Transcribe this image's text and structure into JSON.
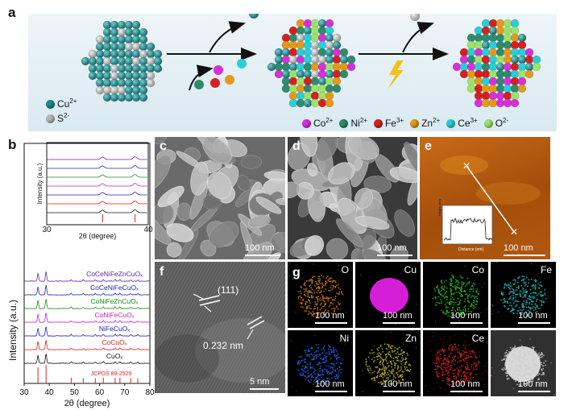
{
  "panel_labels": {
    "a": "a",
    "b": "b",
    "c": "c",
    "d": "d",
    "e": "e",
    "f": "f",
    "g": "g"
  },
  "panel_a": {
    "ions_left": [
      {
        "name": "Cu",
        "charge": "2+"
      },
      {
        "name": "S",
        "charge": "2-"
      }
    ],
    "ions_right": [
      {
        "name": "Co",
        "charge": "2+",
        "color": "#d82fd8"
      },
      {
        "name": "Ni",
        "charge": "2+",
        "color": "#2f8b6e"
      },
      {
        "name": "Fe",
        "charge": "3+",
        "color": "#d81f1f"
      },
      {
        "name": "Zn",
        "charge": "2+",
        "color": "#e39a1a"
      },
      {
        "name": "Ce",
        "charge": "3+",
        "color": "#28cfd8"
      },
      {
        "name": "O",
        "charge": "2-",
        "color": "#9be36a"
      }
    ],
    "colors": {
      "cu": "#1b8a8a",
      "s": "#b8b8b8",
      "lightning": "#f2c21a"
    }
  },
  "panel_b": {
    "xlabel": "2θ (degree)",
    "ylabel": "Intensity (a.u.)",
    "xticks": [
      "30",
      "40",
      "50",
      "60",
      "70",
      "80"
    ],
    "reference_label": "JCPDS 89-2529",
    "inset": {
      "xlabel": "2θ (degree)",
      "ylabel": "Intensity (a.u.)",
      "xticks": [
        "30",
        "40"
      ]
    },
    "samples": [
      {
        "name": "CoCeNiFeZnCuOₓ",
        "color": "#6a1fb8"
      },
      {
        "name": "CoCeNiFeCuOₓ",
        "color": "#1c2aa8"
      },
      {
        "name": "CoNiFeZnCuOₓ",
        "color": "#1f8a1f"
      },
      {
        "name": "CoNiFeCuOₓ",
        "color": "#d020c0"
      },
      {
        "name": "NiFeCuOₓ",
        "color": "#2020c8"
      },
      {
        "name": "CoCuOₓ",
        "color": "#e02020"
      },
      {
        "name": "CuOₓ",
        "color": "#111111"
      }
    ]
  },
  "chart_data": {
    "type": "line",
    "xlabel": "2θ (degree)",
    "ylabel": "Intensity (a.u.)",
    "xlim": [
      30,
      80
    ],
    "peaks_deg": [
      35.5,
      38.7,
      48.7,
      53.5,
      58.3,
      61.5,
      66.2,
      68.1,
      72.4,
      75.2
    ],
    "series": [
      {
        "name": "CoCeNiFeZnCuOₓ"
      },
      {
        "name": "CoCeNiFeCuOₓ"
      },
      {
        "name": "CoNiFeZnCuOₓ"
      },
      {
        "name": "CoNiFeCuOₓ"
      },
      {
        "name": "NiFeCuOₓ"
      },
      {
        "name": "CoCuOₓ"
      },
      {
        "name": "CuOₓ"
      }
    ]
  },
  "panel_c": {
    "scale": "100 nm"
  },
  "panel_d": {
    "scale": "100 nm"
  },
  "panel_e": {
    "scale": "100 nm",
    "inset": {
      "ylabel": "Height (nm)",
      "xlabel": "Distance (nm)",
      "xticks": [
        "0",
        "50",
        "100",
        "150",
        "200",
        "250"
      ],
      "yticks": [
        "0",
        "2",
        "4",
        "6",
        "8"
      ]
    }
  },
  "panel_f": {
    "plane": "(111)",
    "spacing": "0.232 nm",
    "scale": "5 nm"
  },
  "panel_g": {
    "maps": [
      {
        "element": "O",
        "color": "#c8781e",
        "scale": "100 nm"
      },
      {
        "element": "Cu",
        "color": "#e020e0",
        "scale": "100 nm"
      },
      {
        "element": "Co",
        "color": "#20c020",
        "scale": "100 nm"
      },
      {
        "element": "Fe",
        "color": "#20b8b8",
        "scale": "100 nm"
      },
      {
        "element": "Ni",
        "color": "#2060e0",
        "scale": "100 nm"
      },
      {
        "element": "Zn",
        "color": "#b8b020",
        "scale": "100 nm"
      },
      {
        "element": "Ce",
        "color": "#e02020",
        "scale": "100 nm"
      },
      {
        "element": "",
        "color": "#d0d0d0",
        "scale": "100 nm"
      }
    ]
  }
}
